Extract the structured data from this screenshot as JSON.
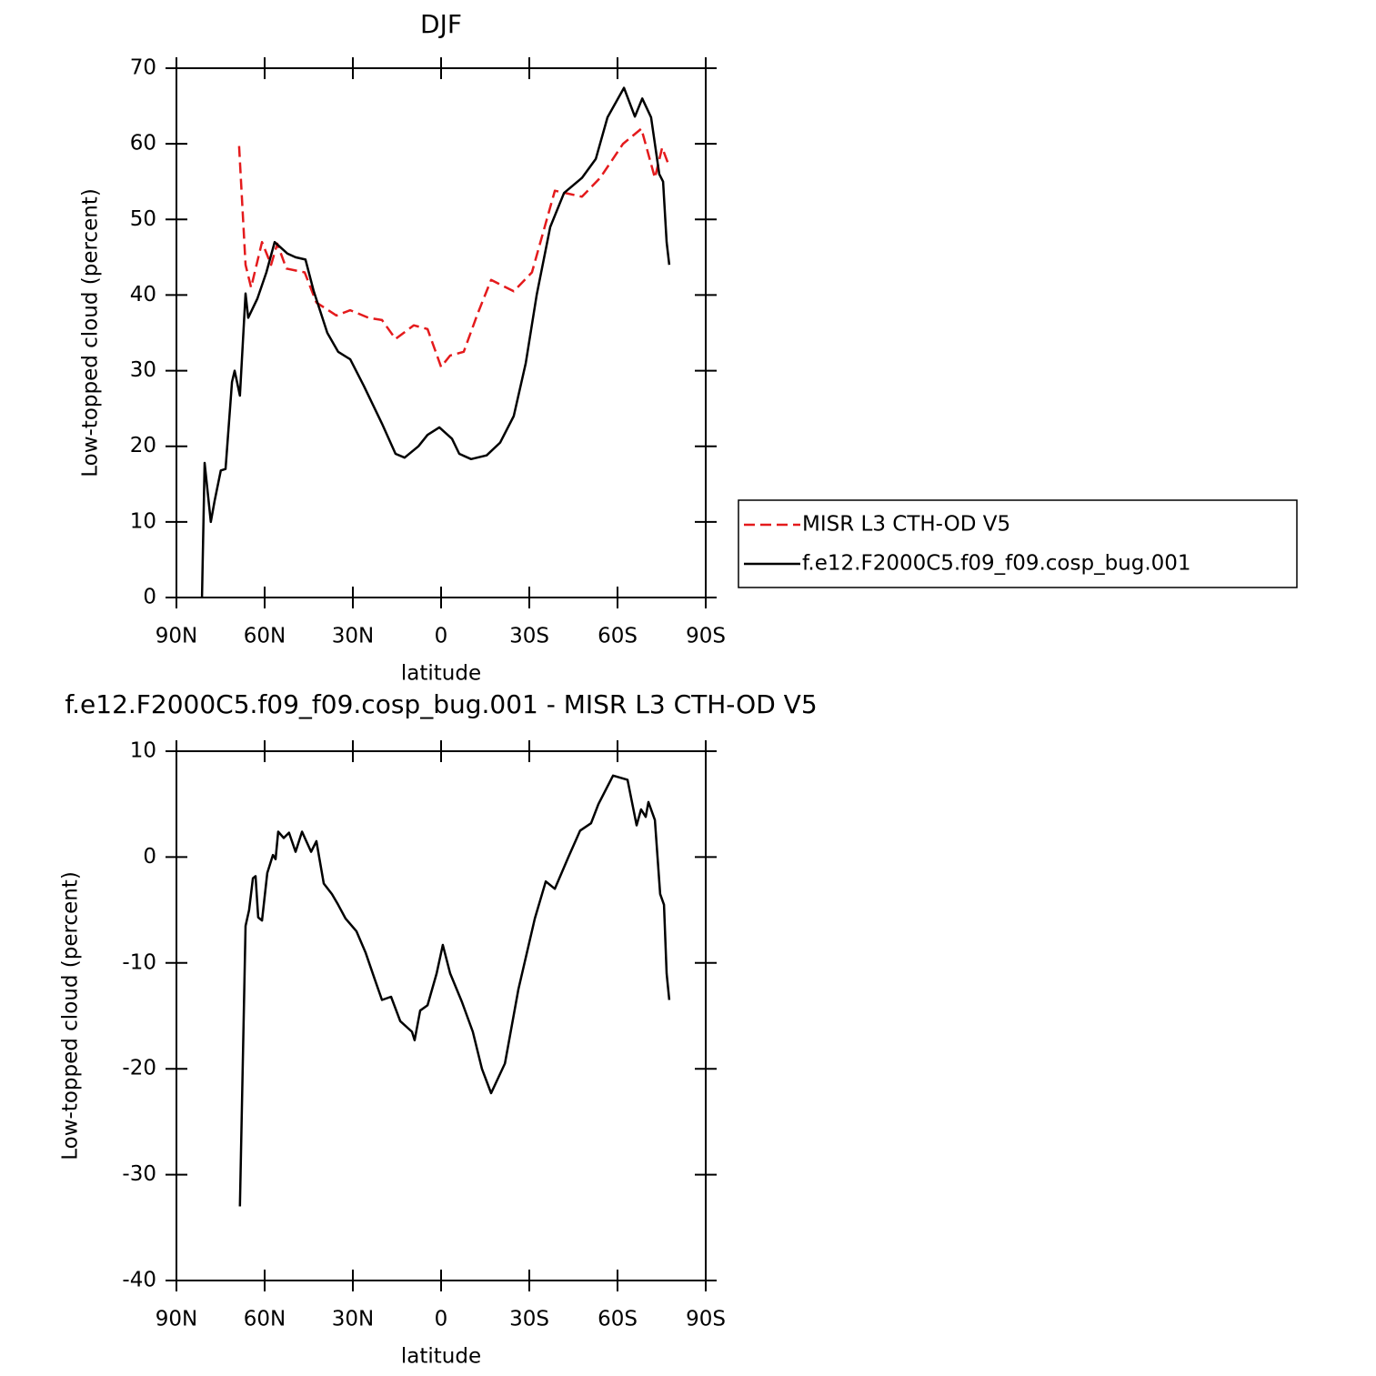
{
  "chart_data": [
    {
      "type": "line",
      "title": "DJF",
      "xlabel": "latitude",
      "ylabel": "Low-topped cloud (percent)",
      "xlim": [
        90,
        -90
      ],
      "xticks": [
        {
          "value": 90,
          "label": "90N"
        },
        {
          "value": 60,
          "label": "60N"
        },
        {
          "value": 30,
          "label": "30N"
        },
        0,
        {
          "value": -30,
          "label": "30S"
        },
        {
          "value": -60,
          "label": "60S"
        },
        {
          "value": -90,
          "label": "90S"
        }
      ],
      "ylim": [
        0,
        70
      ],
      "yticks": [
        0,
        10,
        20,
        30,
        40,
        50,
        60,
        70
      ],
      "legend": "right",
      "series": [
        {
          "name": "MISR L3 CTH-OD V5",
          "color": "#e41a1c",
          "dash": true,
          "x": [
            68.7,
            66.5,
            64.6,
            60.9,
            57.8,
            55.7,
            52.6,
            46.4,
            42.4,
            35.6,
            30.9,
            24.7,
            20.1,
            15.5,
            9.3,
            4.6,
            0,
            -3.1,
            -7.7,
            -12.4,
            -17,
            -24.7,
            -30.9,
            -38.7,
            -47.9,
            -54.1,
            -61.9,
            -68.1,
            -72.7,
            -75.2,
            -77.6
          ],
          "values": [
            59.7,
            44,
            41,
            47,
            44,
            46.8,
            43.5,
            43,
            39,
            37.3,
            38,
            37,
            36.7,
            34.2,
            36,
            35.5,
            30.5,
            32,
            32.5,
            37.5,
            42,
            40.5,
            43,
            53.8,
            53,
            55.5,
            60,
            62,
            55.5,
            59.5,
            57
          ]
        },
        {
          "name": "f.e12.F2000C5.f09_f09.cosp_bug.001",
          "color": "#000000",
          "dash": false,
          "x": [
            81.3,
            80.4,
            78.3,
            77,
            74.9,
            73.3,
            71.1,
            70.2,
            68.4,
            66.5,
            65.6,
            62.5,
            59.4,
            56.6,
            52.3,
            49.5,
            46.1,
            43.3,
            38.7,
            35,
            30.9,
            26.3,
            20.1,
            15.5,
            12.4,
            7.7,
            4.6,
            0.6,
            -3.7,
            -6.2,
            -10.2,
            -15.5,
            -20.1,
            -24.7,
            -28.8,
            -32.5,
            -37.1,
            -41.8,
            -47.9,
            -52.6,
            -56.6,
            -62.2,
            -65.9,
            -68.4,
            -71.4,
            -74.2,
            -75.5,
            -76.7,
            -77.6
          ],
          "values": [
            0,
            17.8,
            10,
            12.8,
            16.8,
            17,
            28.5,
            30,
            26.7,
            40.2,
            37,
            39.5,
            43,
            47,
            45.5,
            45,
            44.7,
            40.5,
            35,
            32.5,
            31.5,
            28,
            23,
            19,
            18.5,
            20,
            21.5,
            22.5,
            21,
            19,
            18.3,
            18.8,
            20.5,
            24,
            31,
            40,
            49,
            53.5,
            55.5,
            58,
            63.5,
            67.4,
            63.6,
            66,
            63.5,
            56,
            55,
            47,
            44
          ]
        }
      ]
    },
    {
      "type": "line",
      "title": "f.e12.F2000C5.f09_f09.cosp_bug.001 - MISR L3 CTH-OD V5",
      "xlabel": "latitude",
      "ylabel": "Low-topped cloud (percent)",
      "xlim": [
        90,
        -90
      ],
      "xticks": [
        {
          "value": 90,
          "label": "90N"
        },
        {
          "value": 60,
          "label": "60N"
        },
        {
          "value": 30,
          "label": "30N"
        },
        0,
        {
          "value": -30,
          "label": "30S"
        },
        {
          "value": -60,
          "label": "60S"
        },
        {
          "value": -90,
          "label": "90S"
        }
      ],
      "ylim": [
        -40,
        10
      ],
      "yticks": [
        -40,
        -30,
        -20,
        -10,
        0,
        10
      ],
      "series": [
        {
          "color": "#000000",
          "dash": false,
          "x": [
            68.4,
            66.5,
            65.3,
            64,
            63.1,
            62.2,
            60.9,
            59.1,
            57.2,
            56.3,
            55.4,
            53.5,
            51.7,
            49.5,
            47.3,
            44.2,
            42.4,
            39.9,
            37.1,
            35,
            32.5,
            28.8,
            25.7,
            22.6,
            20.1,
            17,
            13.9,
            9.9,
            9,
            7.1,
            4.6,
            1.5,
            -0.6,
            -3.1,
            -7.1,
            -10.8,
            -13.9,
            -17,
            -21.7,
            -26.3,
            -31.9,
            -35.6,
            -38.7,
            -43.3,
            -47.3,
            -51,
            -53.5,
            -58.5,
            -63.4,
            -66.5,
            -68,
            -69.6,
            -70.5,
            -72.7,
            -74.5,
            -75.8,
            -76.7,
            -77.6
          ],
          "values": [
            -33,
            -6.5,
            -5,
            -2,
            -1.8,
            -5.7,
            -6,
            -1.5,
            0.2,
            -0.2,
            2.4,
            1.8,
            2.3,
            0.5,
            2.4,
            0.5,
            1.5,
            -2.5,
            -3.5,
            -4.5,
            -5.8,
            -7,
            -9,
            -11.5,
            -13.5,
            -13.2,
            -15.5,
            -16.5,
            -17.3,
            -14.5,
            -14,
            -11,
            -8.3,
            -11,
            -13.7,
            -16.5,
            -20,
            -22.3,
            -19.5,
            -12.5,
            -5.8,
            -2.3,
            -3,
            0,
            2.5,
            3.2,
            5,
            7.7,
            7.3,
            3,
            4.5,
            3.8,
            5.2,
            3.5,
            -3.5,
            -4.5,
            -11,
            -13.5
          ]
        }
      ]
    }
  ]
}
